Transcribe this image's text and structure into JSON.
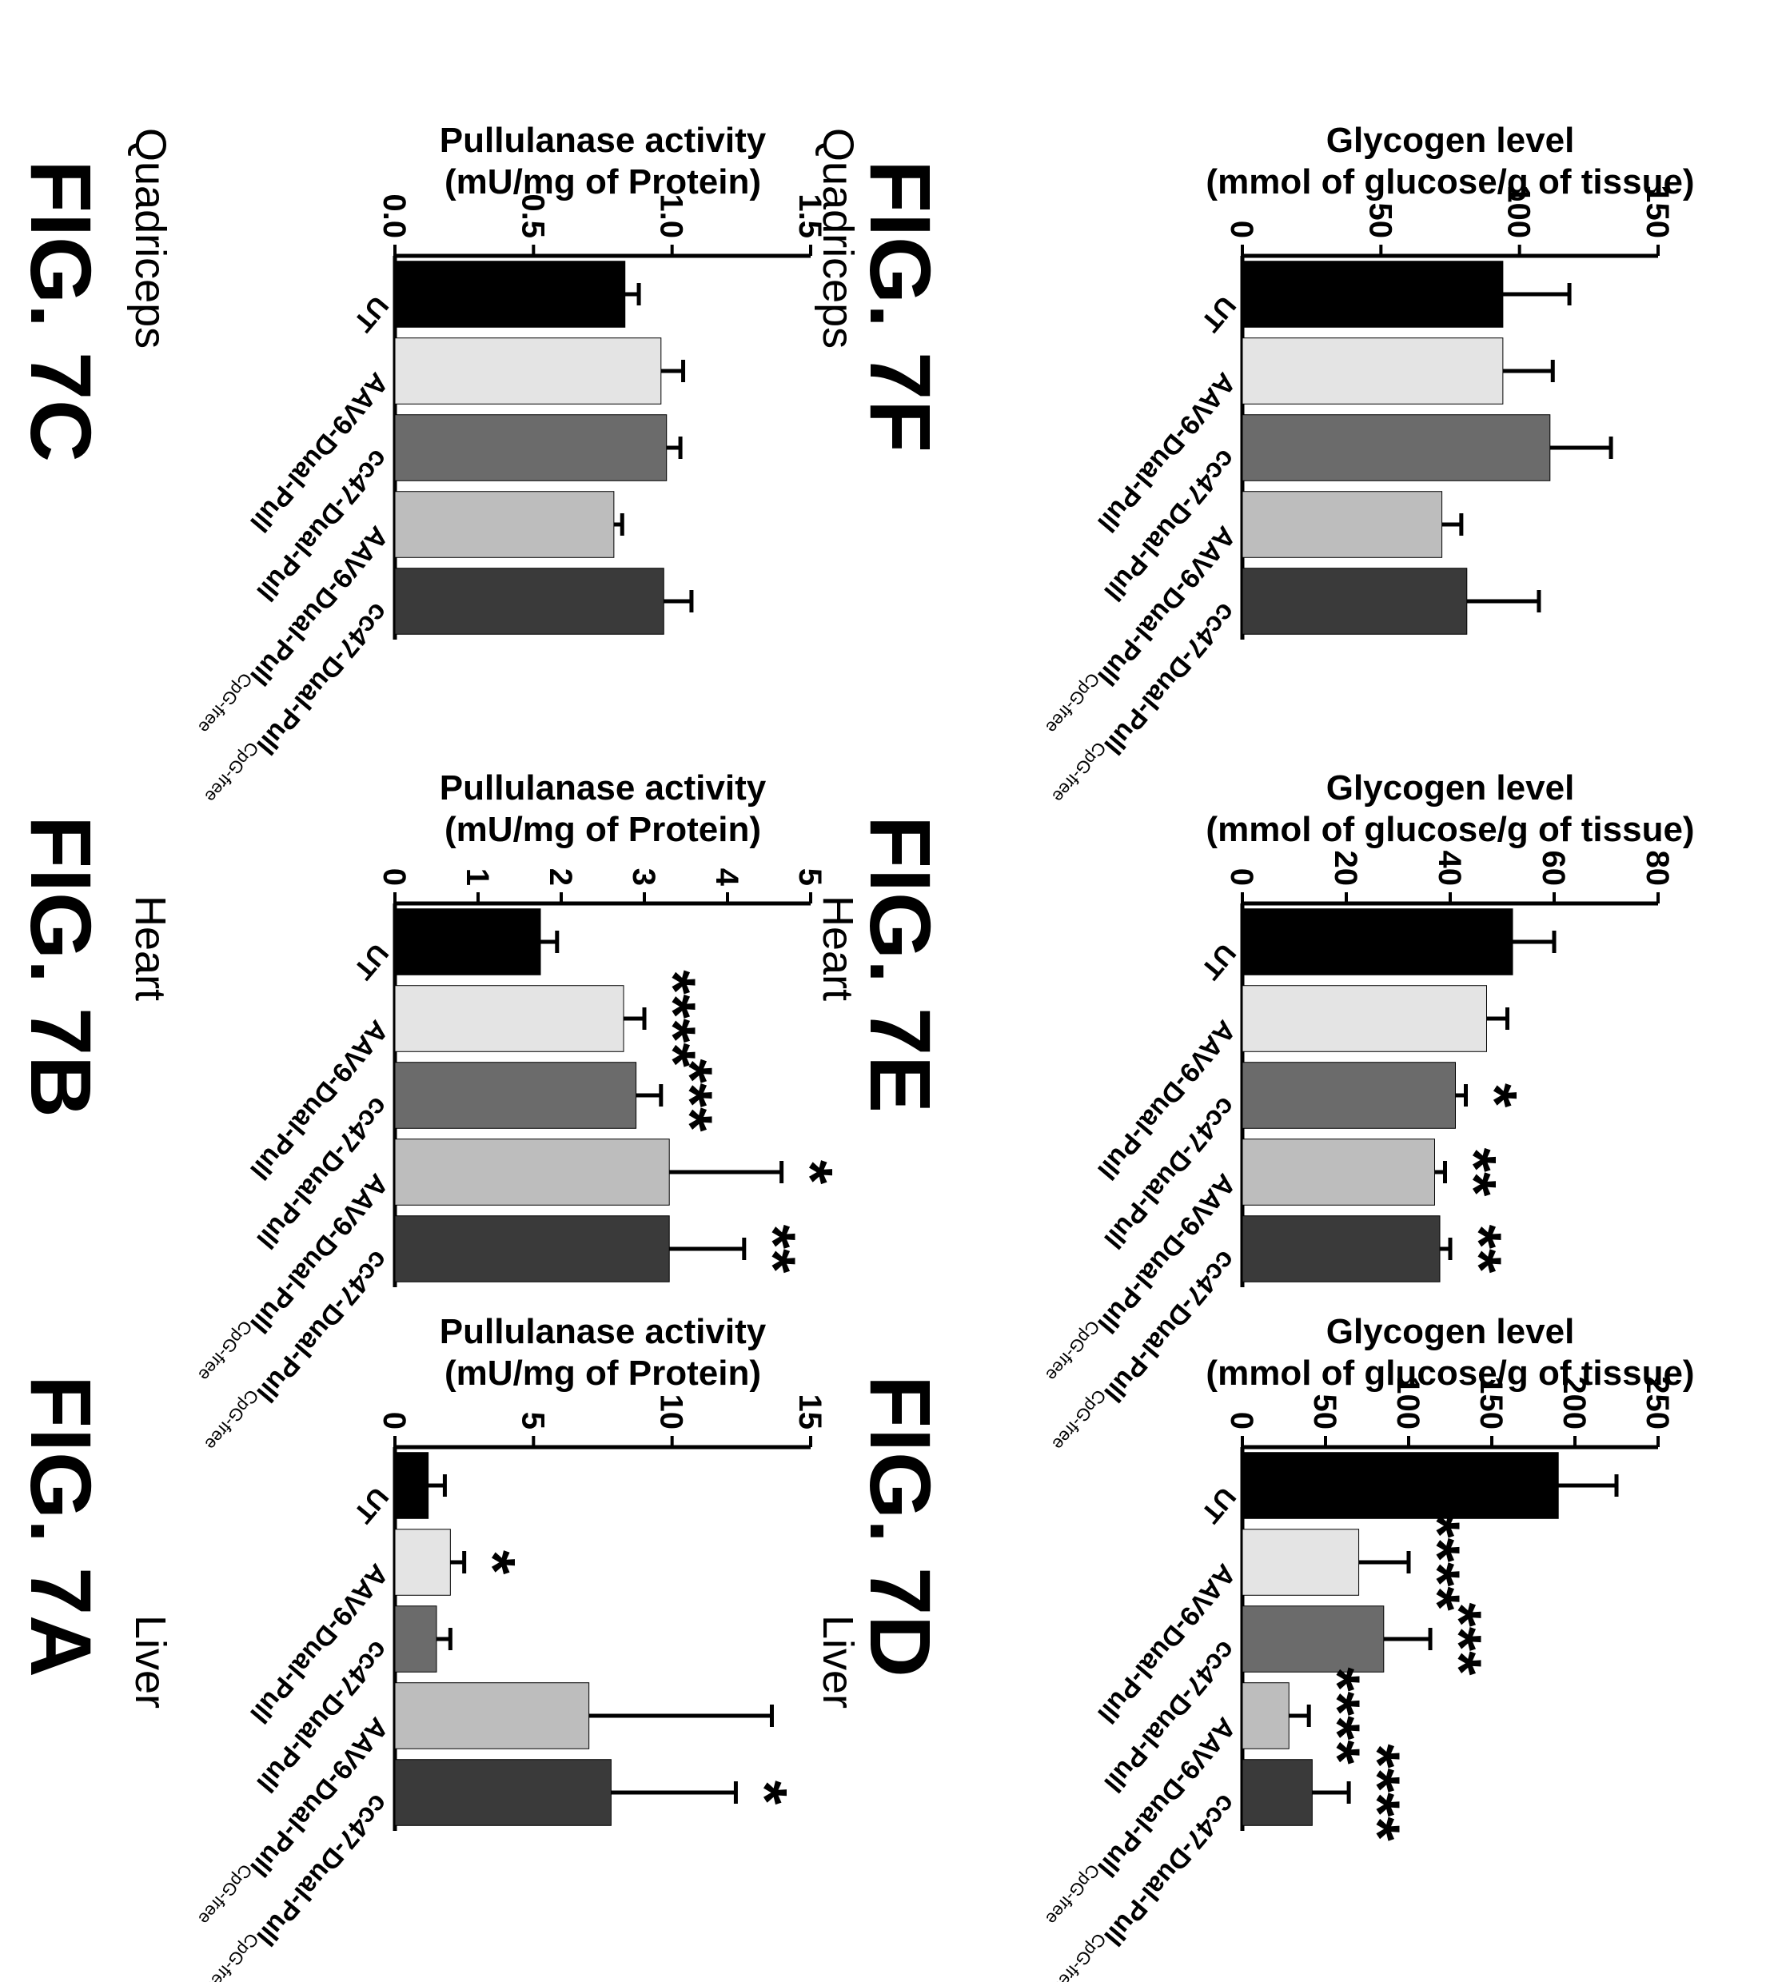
{
  "figure": {
    "bar_colors": [
      "#000000",
      "#e4e4e4",
      "#6b6b6b",
      "#bdbdbd",
      "#3a3a3a"
    ],
    "categories": [
      {
        "main": "UT",
        "sub": ""
      },
      {
        "main": "AAV9-Dual-Pull",
        "sub": ""
      },
      {
        "main": "cc47-Dual-Pull",
        "sub": ""
      },
      {
        "main": "AAV9-Dual-Pull",
        "sub": "CpG-free"
      },
      {
        "main": "cc47-Dual-Pull",
        "sub": "CpG-free"
      }
    ]
  },
  "panels": [
    {
      "label": "FIG. 7A",
      "tissue": "Liver"
    },
    {
      "label": "FIG. 7B",
      "tissue": "Heart"
    },
    {
      "label": "FIG. 7C",
      "tissue": "Quadriceps"
    },
    {
      "label": "FIG. 7D",
      "tissue": "Liver"
    },
    {
      "label": "FIG. 7E",
      "tissue": "Heart"
    },
    {
      "label": "FIG. 7F",
      "tissue": "Quadriceps"
    }
  ],
  "chart_data": [
    {
      "type": "bar",
      "title": "Liver",
      "ylabel": [
        "Pullulanase activity",
        "(mU/mg of Protein)"
      ],
      "categories": [
        "UT",
        "AAV9-Dual-Pull",
        "cc47-Dual-Pull",
        "AAV9-Dual-PullCpG-free",
        "cc47-Dual-PullCpG-free"
      ],
      "values": [
        1.2,
        2.0,
        1.5,
        7.0,
        7.8
      ],
      "errors": [
        0.6,
        0.5,
        0.5,
        6.6,
        4.5
      ],
      "significance": [
        "",
        "*",
        "",
        "",
        "*"
      ],
      "ylim": [
        0,
        15
      ],
      "yticks": [
        0,
        5,
        10,
        15
      ],
      "ytick_labels": [
        "0",
        "5",
        "10",
        "15"
      ]
    },
    {
      "type": "bar",
      "title": "Heart",
      "ylabel": [
        "Pullulanase activity",
        "(mU/mg of Protein)"
      ],
      "categories": [
        "UT",
        "AAV9-Dual-Pull",
        "cc47-Dual-Pull",
        "AAV9-Dual-PullCpG-free",
        "cc47-Dual-PullCpG-free"
      ],
      "values": [
        1.75,
        2.75,
        2.9,
        3.3,
        3.3
      ],
      "errors": [
        0.2,
        0.25,
        0.3,
        1.35,
        0.9
      ],
      "significance": [
        "",
        "****",
        "***",
        "*",
        "**"
      ],
      "ylim": [
        0,
        5
      ],
      "yticks": [
        0,
        1,
        2,
        3,
        4,
        5
      ],
      "ytick_labels": [
        "0",
        "1",
        "2",
        "3",
        "4",
        "5"
      ]
    },
    {
      "type": "bar",
      "title": "Quadriceps",
      "ylabel": [
        "Pullulanase activity",
        "(mU/mg of Protein)"
      ],
      "categories": [
        "UT",
        "AAV9-Dual-Pull",
        "cc47-Dual-Pull",
        "AAV9-Dual-PullCpG-free",
        "cc47-Dual-PullCpG-free"
      ],
      "values": [
        0.83,
        0.96,
        0.98,
        0.79,
        0.97
      ],
      "errors": [
        0.05,
        0.08,
        0.05,
        0.03,
        0.1
      ],
      "significance": [
        "",
        "",
        "",
        "",
        ""
      ],
      "ylim": [
        0,
        1.5
      ],
      "yticks": [
        0,
        0.5,
        1.0,
        1.5
      ],
      "ytick_labels": [
        "0.0",
        "0.5",
        "1.0",
        "1.5"
      ]
    },
    {
      "type": "bar",
      "title": "Liver",
      "ylabel": [
        "Glycogen level",
        "(mmol of glucose/g of tissue)"
      ],
      "categories": [
        "UT",
        "AAV9-Dual-Pull",
        "cc47-Dual-Pull",
        "AAV9-Dual-PullCpG-free",
        "cc47-Dual-PullCpG-free"
      ],
      "values": [
        190,
        70,
        85,
        28,
        42
      ],
      "errors": [
        35,
        30,
        28,
        12,
        22
      ],
      "significance": [
        "",
        "****",
        "***",
        "****",
        "****"
      ],
      "ylim": [
        0,
        250
      ],
      "yticks": [
        0,
        50,
        100,
        150,
        200,
        250
      ],
      "ytick_labels": [
        "0",
        "50",
        "100",
        "150",
        "200",
        "250"
      ]
    },
    {
      "type": "bar",
      "title": "Heart",
      "ylabel": [
        "Glycogen level",
        "(mmol of glucose/g of tissue)"
      ],
      "categories": [
        "UT",
        "AAV9-Dual-Pull",
        "cc47-Dual-Pull",
        "AAV9-Dual-PullCpG-free",
        "cc47-Dual-PullCpG-free"
      ],
      "values": [
        52,
        47,
        41,
        37,
        38
      ],
      "errors": [
        8,
        4,
        2,
        2,
        2
      ],
      "significance": [
        "",
        "",
        "*",
        "**",
        "**"
      ],
      "ylim": [
        0,
        80
      ],
      "yticks": [
        0,
        20,
        40,
        60,
        80
      ],
      "ytick_labels": [
        "0",
        "20",
        "40",
        "60",
        "80"
      ]
    },
    {
      "type": "bar",
      "title": "Quadriceps",
      "ylabel": [
        "Glycogen level",
        "(mmol of glucose/g of tissue)"
      ],
      "categories": [
        "UT",
        "AAV9-Dual-Pull",
        "cc47-Dual-Pull",
        "AAV9-Dual-PullCpG-free",
        "cc47-Dual-PullCpG-free"
      ],
      "values": [
        94,
        94,
        111,
        72,
        81
      ],
      "errors": [
        24,
        18,
        22,
        7,
        26
      ],
      "significance": [
        "",
        "",
        "",
        "",
        ""
      ],
      "ylim": [
        0,
        150
      ],
      "yticks": [
        0,
        50,
        100,
        150
      ],
      "ytick_labels": [
        "0",
        "50",
        "100",
        "150"
      ]
    }
  ]
}
